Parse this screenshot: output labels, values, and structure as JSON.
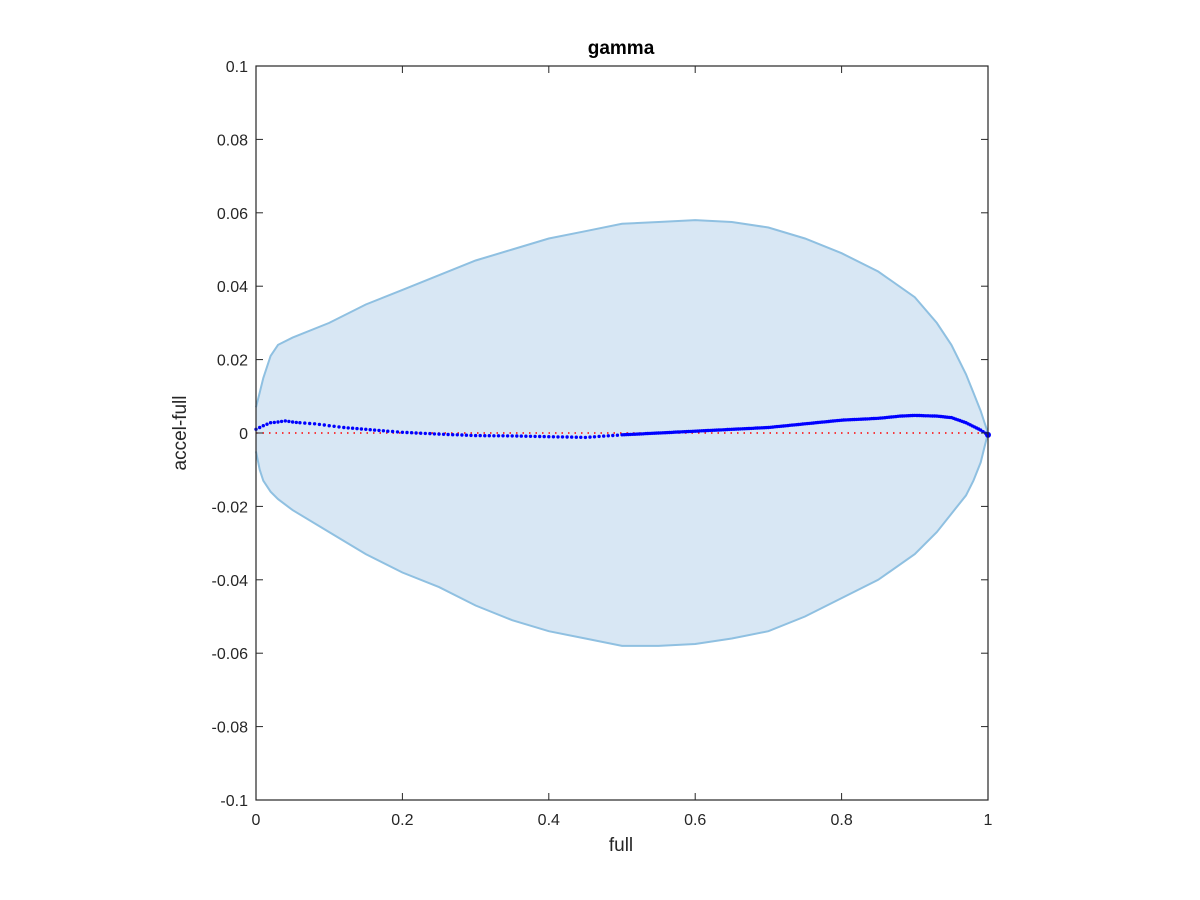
{
  "chart_data": {
    "type": "area",
    "title": "gamma",
    "xlabel": "full",
    "ylabel": "accel-full",
    "xlim": [
      0,
      1
    ],
    "ylim": [
      -0.1,
      0.1
    ],
    "xticks": [
      0,
      0.2,
      0.4,
      0.6,
      0.8,
      1
    ],
    "xtick_labels": [
      "0",
      "0.2",
      "0.4",
      "0.6",
      "0.8",
      "1"
    ],
    "yticks": [
      0.1,
      0.08,
      0.06,
      0.04,
      0.02,
      0,
      -0.02,
      -0.04,
      -0.06,
      -0.08,
      -0.1
    ],
    "ytick_labels": [
      "0.1",
      "0.08",
      "0.06",
      "0.04",
      "0.02",
      "0",
      "-0.02",
      "-0.04",
      "-0.06",
      "-0.08",
      "-0.1"
    ],
    "grid": false,
    "colors": {
      "band_fill": "#d8e7f4",
      "band_edge": "#8fc0e1",
      "series": "#0000ff",
      "zero_line": "#ff0000",
      "axes": "#262626"
    },
    "band": {
      "x": [
        0,
        0.005,
        0.01,
        0.02,
        0.03,
        0.05,
        0.1,
        0.15,
        0.2,
        0.25,
        0.3,
        0.35,
        0.4,
        0.45,
        0.5,
        0.55,
        0.6,
        0.65,
        0.7,
        0.75,
        0.8,
        0.85,
        0.9,
        0.93,
        0.95,
        0.97,
        0.98,
        0.99,
        0.995,
        1
      ],
      "upper": [
        0.007,
        0.011,
        0.015,
        0.021,
        0.024,
        0.026,
        0.03,
        0.035,
        0.039,
        0.043,
        0.047,
        0.05,
        0.053,
        0.055,
        0.057,
        0.0575,
        0.058,
        0.0575,
        0.056,
        0.053,
        0.049,
        0.044,
        0.037,
        0.03,
        0.024,
        0.016,
        0.011,
        0.006,
        0.003,
        0
      ],
      "lower": [
        -0.005,
        -0.01,
        -0.013,
        -0.016,
        -0.018,
        -0.021,
        -0.027,
        -0.033,
        -0.038,
        -0.042,
        -0.047,
        -0.051,
        -0.054,
        -0.056,
        -0.058,
        -0.058,
        -0.0575,
        -0.056,
        -0.054,
        -0.05,
        -0.045,
        -0.04,
        -0.033,
        -0.027,
        -0.022,
        -0.017,
        -0.013,
        -0.008,
        -0.004,
        0
      ]
    },
    "series": [
      {
        "x": [
          0,
          0.01,
          0.02,
          0.03,
          0.04,
          0.05,
          0.06,
          0.08,
          0.1,
          0.12,
          0.15,
          0.18,
          0.2,
          0.25,
          0.3,
          0.35,
          0.4,
          0.45,
          0.5,
          0.55,
          0.6,
          0.65,
          0.7,
          0.75,
          0.8,
          0.85,
          0.88,
          0.9,
          0.93,
          0.95,
          0.97,
          0.99,
          1
        ],
        "y": [
          0.001,
          0.002,
          0.0028,
          0.003,
          0.0033,
          0.003,
          0.0028,
          0.0025,
          0.002,
          0.0015,
          0.001,
          0.0005,
          0.0002,
          -0.0003,
          -0.0007,
          -0.0008,
          -0.001,
          -0.0012,
          -0.0005,
          0,
          0.0005,
          0.001,
          0.0015,
          0.0025,
          0.0035,
          0.004,
          0.0046,
          0.0048,
          0.0046,
          0.0042,
          0.0028,
          0.0008,
          -0.0005
        ]
      }
    ],
    "reference_line": {
      "y": 0,
      "style": "dotted"
    }
  }
}
